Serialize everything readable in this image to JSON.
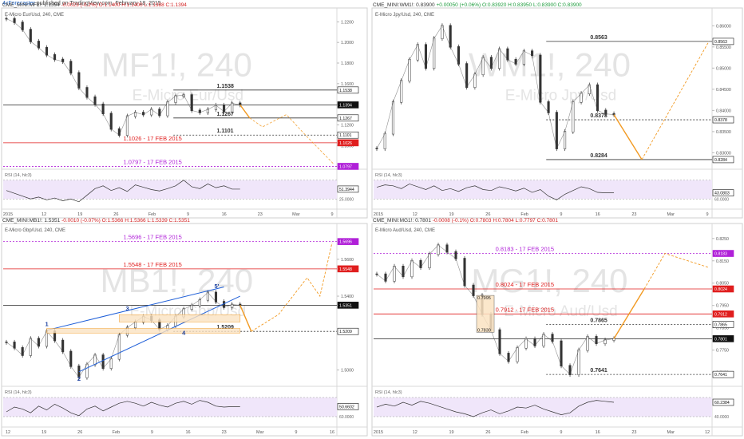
{
  "header": {
    "brand": "4xForecaster",
    "text": " published on TradingView.com, February 18, 2015"
  },
  "colors": {
    "red": "#e01e1e",
    "purple": "#b020d8",
    "orange": "#f29a22",
    "blue": "#1f5fd8",
    "rsi_band": "#f0e6fa"
  },
  "chart_data": [
    {
      "type": "line",
      "symbol": "CME_MINI:MF1!",
      "change": "-0.0023 (-0.2%)",
      "ohlc": {
        "open": "O:1.1400",
        "high": "H:1.1400",
        "low": "L:1.1388",
        "close": "C:1.1394"
      },
      "last": "1.1394",
      "subtitle": "E-Micro Eur/Usd, 240, CME",
      "watermark": "MF1!, 240",
      "watermark2": "E-Micro Eur/Usd",
      "x_labels": [
        "2015",
        "12",
        "19",
        "26",
        "Feb",
        "9",
        "16",
        "23",
        "Mar",
        "9"
      ],
      "y_ticks": [
        "1.2200",
        "1.2000",
        "1.1800",
        "1.1600",
        "1.1400",
        "1.1200",
        "1.1000",
        "1.0800"
      ],
      "ylim": [
        1.0785,
        1.2265
      ],
      "price_series": [
        1.223,
        1.2195,
        1.2125,
        1.201,
        1.195,
        1.188,
        1.1835,
        1.1815,
        1.1705,
        1.156,
        1.147,
        1.14,
        1.131,
        1.116,
        1.1101,
        1.1285,
        1.132,
        1.13,
        1.135,
        1.1292,
        1.142,
        1.148,
        1.149,
        1.134,
        1.132,
        1.135,
        1.139,
        1.133,
        1.141,
        1.1394
      ],
      "levels": [
        {
          "value": 1.1538,
          "label": "1.1538",
          "style": "black"
        },
        {
          "value": 1.1394,
          "label": "1.1394",
          "style": "last"
        },
        {
          "value": 1.1267,
          "label": "1.1267",
          "style": "black"
        },
        {
          "value": 1.1101,
          "label": "1.1101",
          "style": "black"
        },
        {
          "value": 1.1026,
          "label": "1.1026 - 17 FEB 2015",
          "style": "red"
        },
        {
          "value": 1.0797,
          "label": "1.0797 - 17 FEB 2015",
          "style": "purple"
        }
      ],
      "rsi": {
        "label": "RSI (14, hlc3)",
        "value": "51.3944",
        "band_label": "25.0000",
        "series": [
          48,
          42,
          36,
          30,
          34,
          28,
          32,
          26,
          30,
          24,
          38,
          52,
          58,
          48,
          54,
          46,
          60,
          55,
          50,
          47,
          52,
          58,
          70,
          56,
          52,
          62,
          54,
          58,
          51,
          51
        ]
      }
    },
    {
      "type": "line",
      "symbol": "CME_MINI:WM1!",
      "change": "+0.00050 (+0.06%)",
      "ohlc": {
        "open": "O:0.83920",
        "high": "H:0.83950",
        "low": "L:0.83900",
        "close": "C:0.83900"
      },
      "last": "0.83900",
      "subtitle": "E-Micro Jpy/Usd, 240, CME",
      "watermark": "WM1!, 240",
      "watermark2": "E-Micro Jpy/Usd",
      "x_labels": [
        "2015",
        "12",
        "19",
        "26",
        "Feb",
        "9",
        "16",
        "23",
        "Mar",
        "9"
      ],
      "y_ticks": [
        "0.86000",
        "0.85500",
        "0.85000",
        "0.84500",
        "0.84000",
        "0.83500",
        "0.83000"
      ],
      "ylim": [
        0.8265,
        0.8625
      ],
      "price_series": [
        0.831,
        0.8345,
        0.842,
        0.847,
        0.852,
        0.8555,
        0.85,
        0.857,
        0.86,
        0.855,
        0.851,
        0.8455,
        0.8485,
        0.8525,
        0.85,
        0.8545,
        0.852,
        0.851,
        0.854,
        0.853,
        0.842,
        0.8395,
        0.831,
        0.835,
        0.842,
        0.844,
        0.846,
        0.84,
        0.8392,
        0.839
      ],
      "levels": [
        {
          "value": 0.8563,
          "label": "0.8563",
          "style": "black"
        },
        {
          "value": 0.8378,
          "label": "0.8378",
          "style": "black"
        },
        {
          "value": 0.8284,
          "label": "0.8284",
          "style": "black"
        }
      ],
      "rsi": {
        "label": "RSI (14, hlc3)",
        "value": "43.0803",
        "band_label": "60.0000",
        "series": [
          55,
          60,
          58,
          52,
          62,
          56,
          50,
          58,
          48,
          52,
          46,
          54,
          58,
          50,
          48,
          56,
          52,
          47,
          53,
          44,
          50,
          36,
          28,
          40,
          48,
          56,
          52,
          44,
          43,
          43
        ]
      }
    },
    {
      "type": "line",
      "symbol": "CME_MINI:MB1!",
      "change": "-0.0010 (-0.07%)",
      "ohlc": {
        "open": "O:1.5366",
        "high": "H:1.5366",
        "low": "L:1.5339",
        "close": "C:1.5351"
      },
      "last": "1.5351",
      "subtitle": "E-Micro Gbp/Usd, 240, CME",
      "watermark": "MB1!, 240",
      "watermark2": "E-Micro Gbp/Usd",
      "x_labels": [
        "12",
        "19",
        "26",
        "Feb",
        "9",
        "16",
        "23",
        "Mar",
        "9",
        "16"
      ],
      "y_ticks": [
        "1.5800",
        "1.5600",
        "1.5400",
        "1.5200",
        "1.5000"
      ],
      "ylim": [
        1.492,
        1.5755
      ],
      "price_series": [
        1.515,
        1.512,
        1.508,
        1.517,
        1.513,
        1.521,
        1.516,
        1.51,
        1.502,
        1.496,
        1.503,
        1.508,
        1.501,
        1.506,
        1.519,
        1.523,
        1.526,
        1.529,
        1.527,
        1.522,
        1.524,
        1.529,
        1.533,
        1.535,
        1.538,
        1.542,
        1.537,
        1.534,
        1.5355,
        1.5351
      ],
      "levels": [
        {
          "value": 1.5696,
          "label": "1.5696 - 17 FEB 2015",
          "style": "purple"
        },
        {
          "value": 1.5548,
          "label": "1.5548 - 17 FEB 2015",
          "style": "red"
        },
        {
          "value": 1.5351,
          "label": "1.5351",
          "style": "last"
        },
        {
          "value": 1.5209,
          "label": "1.5209",
          "style": "black"
        }
      ],
      "wave_labels": [
        "1",
        "2",
        "3",
        "4",
        "5'"
      ],
      "rsi": {
        "label": "RSI (14, hlc3)",
        "value": "50.6602",
        "band_label": "60.0000",
        "series": [
          40,
          50,
          46,
          38,
          52,
          44,
          56,
          48,
          38,
          32,
          46,
          52,
          42,
          50,
          58,
          62,
          58,
          52,
          60,
          54,
          50,
          58,
          62,
          56,
          64,
          60,
          52,
          50,
          51,
          51
        ]
      }
    },
    {
      "type": "line",
      "symbol": "CME_MINI:MG1!",
      "change": "-0.0008 (-0.1%)",
      "ohlc": {
        "open": "O:0.7803",
        "high": "H:0.7804",
        "low": "L:0.7797",
        "close": "C:0.7801"
      },
      "last": "0.7801",
      "subtitle": "E-Micro Aud/Usd, 240, CME",
      "watermark": "MG1!, 240",
      "watermark2": "E-Micro Aud/Usd",
      "x_labels": [
        "2015",
        "12",
        "19",
        "26",
        "Feb",
        "9",
        "16",
        "23",
        "Mar",
        "12"
      ],
      "y_ticks": [
        "0.8250",
        "0.8150",
        "0.8050",
        "0.7950",
        "0.7850",
        "0.7750",
        "0.7650"
      ],
      "ylim": [
        0.7595,
        0.8285
      ],
      "price_series": [
        0.809,
        0.806,
        0.8125,
        0.808,
        0.815,
        0.812,
        0.818,
        0.822,
        0.819,
        0.816,
        0.804,
        0.7995,
        0.791,
        0.784,
        0.7735,
        0.77,
        0.776,
        0.78,
        0.777,
        0.782,
        0.779,
        0.768,
        0.7641,
        0.775,
        0.781,
        0.778,
        0.7795,
        0.7801
      ],
      "levels": [
        {
          "value": 0.8183,
          "label": "0.8183 - 17 FEB 2015",
          "style": "purple"
        },
        {
          "value": 0.8024,
          "label": "0.8024 - 17 FEB 2015",
          "style": "red"
        },
        {
          "value": 0.7912,
          "label": "0.7912 - 17 FEB 2015",
          "style": "red"
        },
        {
          "value": 0.7865,
          "label": "0.7865",
          "style": "black"
        },
        {
          "value": 0.7801,
          "label": "0.7801",
          "style": "last"
        },
        {
          "value": 0.7641,
          "label": "0.7641",
          "style": "black"
        }
      ],
      "box_labels": [
        "0.7995",
        "0.7830"
      ],
      "rsi": {
        "label": "RSI (14, hlc3)",
        "value": "60.2384",
        "band_label": "40.0000",
        "series": [
          50,
          56,
          52,
          60,
          54,
          62,
          58,
          52,
          46,
          40,
          36,
          30,
          38,
          44,
          36,
          42,
          50,
          48,
          54,
          46,
          40,
          34,
          38,
          52,
          60,
          64,
          62,
          60
        ]
      }
    }
  ]
}
